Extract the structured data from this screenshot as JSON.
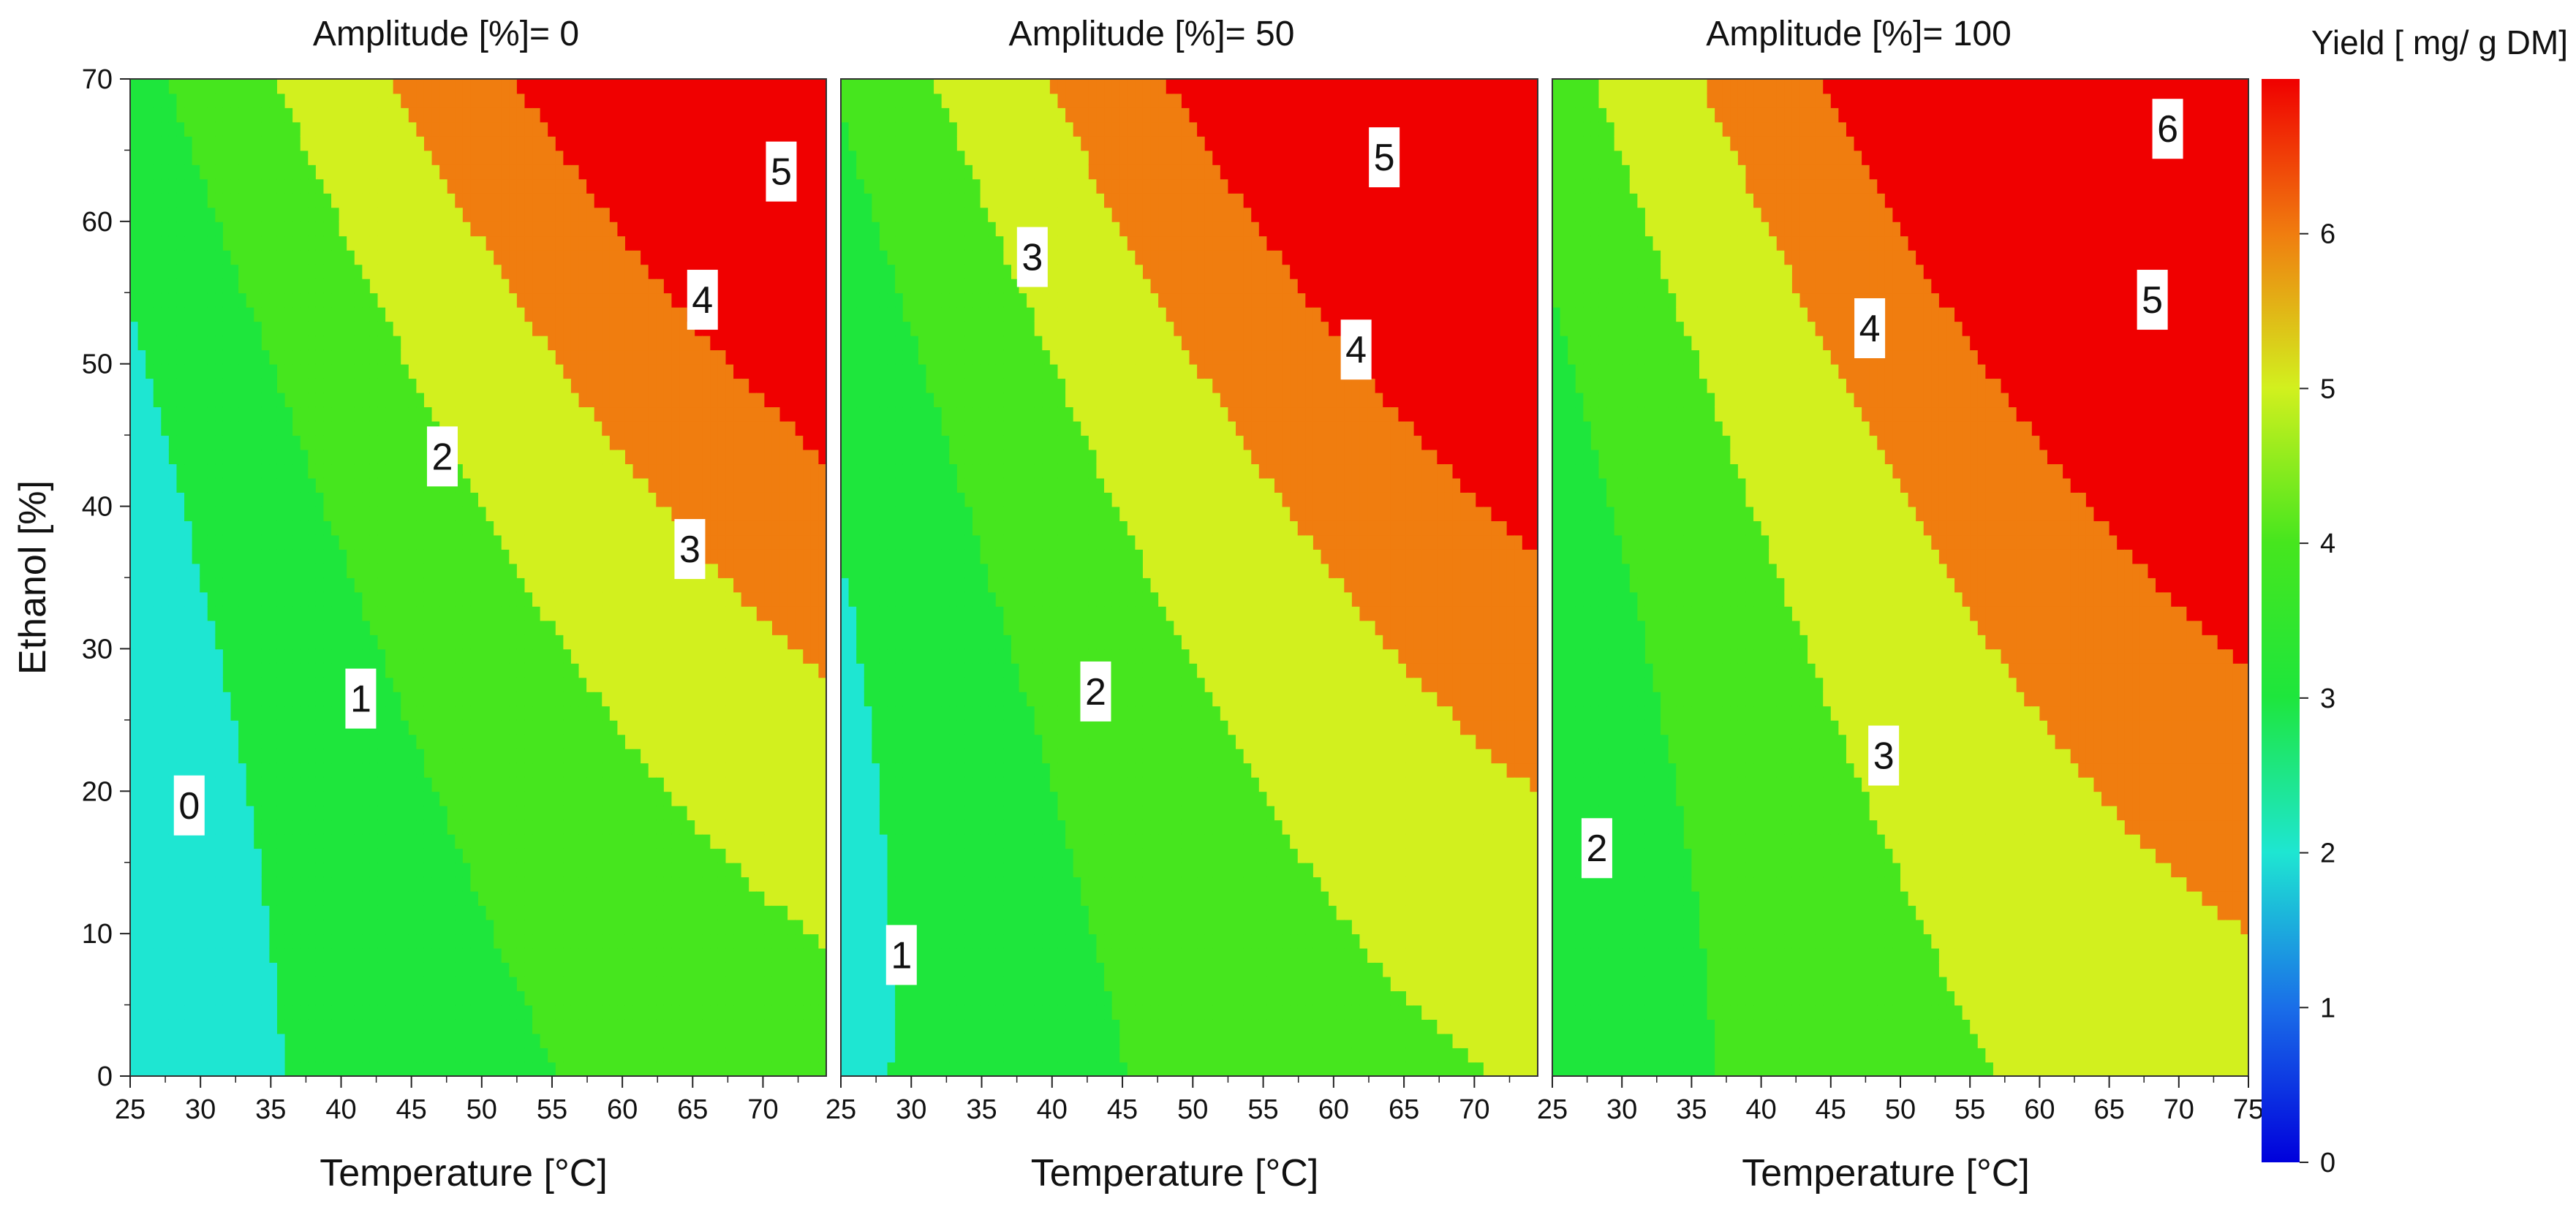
{
  "chart_data": {
    "type": "contour",
    "colorbar": {
      "title": "Yield [ mg/ g DM]",
      "min": 0,
      "max": 7,
      "ticks": [
        0,
        1,
        2,
        3,
        4,
        5,
        6
      ],
      "tick_labels": [
        "0",
        "1",
        "2",
        "3",
        "4",
        "5",
        "6"
      ],
      "colormap": "rainbow (blue-cyan-green-yellow-red)"
    },
    "yaxis": {
      "label": "Ethanol [%]",
      "range": [
        0,
        70
      ],
      "ticks": [
        0,
        10,
        20,
        30,
        40,
        50,
        60,
        70
      ],
      "tick_labels": [
        "0",
        "10",
        "20",
        "30",
        "40",
        "50",
        "60",
        "70"
      ]
    },
    "contour_levels": [
      0,
      1,
      2,
      3,
      4,
      5,
      6
    ],
    "panels": [
      {
        "title": "Amplitude [%]= 0",
        "amplitude": 0,
        "xlabel": "Temperature [°C]",
        "xrange": [
          25,
          74.5
        ],
        "xticks": [
          25,
          30,
          35,
          40,
          45,
          50,
          55,
          60,
          65,
          70
        ],
        "xtick_labels": [
          "25",
          "30",
          "35",
          "40",
          "45",
          "50",
          "55",
          "60",
          "65",
          "70"
        ],
        "contour_labels": [
          {
            "text": "0",
            "x": 29.2,
            "y": 19
          },
          {
            "text": "1",
            "x": 41.4,
            "y": 26.5
          },
          {
            "text": "2",
            "x": 47.2,
            "y": 43.5
          },
          {
            "text": "3",
            "x": 64.8,
            "y": 37
          },
          {
            "text": "4",
            "x": 65.7,
            "y": 54.5
          },
          {
            "text": "5",
            "x": 71.3,
            "y": 63.5
          }
        ]
      },
      {
        "title": "Amplitude [%]= 50",
        "amplitude": 50,
        "xlabel": "Temperature [°C]",
        "xrange": [
          25,
          74.5
        ],
        "xticks": [
          25,
          30,
          35,
          40,
          45,
          50,
          55,
          60,
          65,
          70
        ],
        "xtick_labels": [
          "25",
          "30",
          "35",
          "40",
          "45",
          "50",
          "55",
          "60",
          "65",
          "70"
        ],
        "contour_labels": [
          {
            "text": "1",
            "x": 29.3,
            "y": 8.5
          },
          {
            "text": "2",
            "x": 43.1,
            "y": 27
          },
          {
            "text": "3",
            "x": 38.6,
            "y": 57.5
          },
          {
            "text": "4",
            "x": 61.6,
            "y": 51
          },
          {
            "text": "5",
            "x": 63.6,
            "y": 64.5
          }
        ]
      },
      {
        "title": "Amplitude [%]= 100",
        "amplitude": 100,
        "xlabel": "Temperature [°C]",
        "xrange": [
          25,
          75
        ],
        "xticks": [
          25,
          30,
          35,
          40,
          45,
          50,
          55,
          60,
          65,
          70,
          75
        ],
        "xtick_labels": [
          "25",
          "30",
          "35",
          "40",
          "45",
          "50",
          "55",
          "60",
          "65",
          "70",
          "75"
        ],
        "contour_labels": [
          {
            "text": "2",
            "x": 28.2,
            "y": 16
          },
          {
            "text": "3",
            "x": 48.8,
            "y": 22.5
          },
          {
            "text": "4",
            "x": 47.8,
            "y": 52.5
          },
          {
            "text": "5",
            "x": 68.1,
            "y": 54.5
          },
          {
            "text": "6",
            "x": 69.2,
            "y": 66.5
          }
        ]
      }
    ]
  }
}
